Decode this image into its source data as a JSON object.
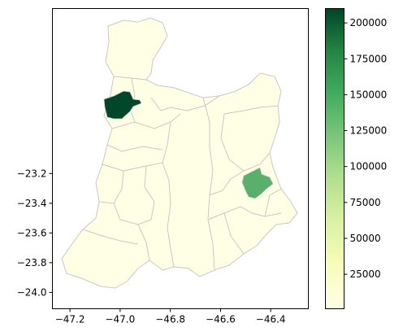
{
  "chart_data": {
    "type": "choropleth",
    "title": "",
    "xlabel": "",
    "ylabel": "",
    "xlim": [
      -47.27,
      -46.25
    ],
    "ylim": [
      -24.11,
      -22.09
    ],
    "x_ticks": [
      {
        "value": -47.2,
        "label": "−47.2"
      },
      {
        "value": -47.0,
        "label": "−47.0"
      },
      {
        "value": -46.8,
        "label": "−46.8"
      },
      {
        "value": -46.6,
        "label": "−46.6"
      },
      {
        "value": -46.4,
        "label": "−46.4"
      }
    ],
    "y_ticks": [
      {
        "value": -23.2,
        "label": "−23.2"
      },
      {
        "value": -23.4,
        "label": "−23.4"
      },
      {
        "value": -23.6,
        "label": "−23.6"
      },
      {
        "value": -23.8,
        "label": "−23.8"
      },
      {
        "value": -24.0,
        "label": "−24.0"
      }
    ],
    "colorbar": {
      "cmap": "Greens (light yellow to dark green)",
      "range": [
        1000,
        210000
      ],
      "ticks": [
        {
          "value": 25000,
          "label": "25000"
        },
        {
          "value": 50000,
          "label": "50000"
        },
        {
          "value": 75000,
          "label": "75000"
        },
        {
          "value": 100000,
          "label": "100000"
        },
        {
          "value": 125000,
          "label": "125000"
        },
        {
          "value": 150000,
          "label": "150000"
        },
        {
          "value": 175000,
          "label": "175000"
        },
        {
          "value": 200000,
          "label": "200000"
        }
      ]
    },
    "region_values": [
      {
        "region": "northwest-dark-region",
        "value": 210000
      },
      {
        "region": "east-medium-region",
        "value": 110000
      },
      {
        "region": "all-other-regions",
        "value": 1000
      }
    ],
    "colors": {
      "low": "#ffffe5",
      "mid": "#5cb56d",
      "high": "#00462a",
      "border": "#c8c8c8"
    }
  }
}
